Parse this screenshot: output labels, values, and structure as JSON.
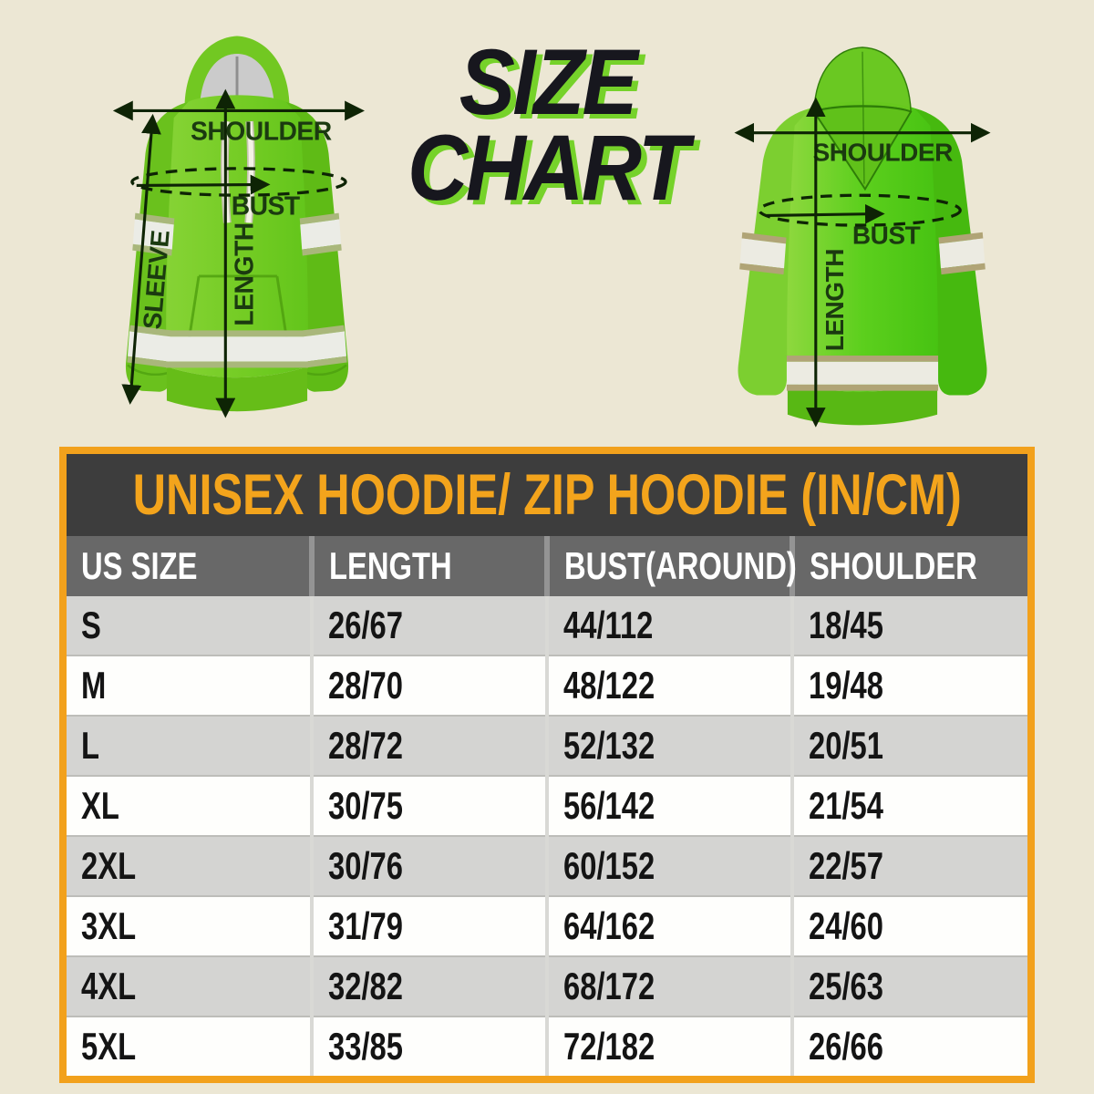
{
  "page": {
    "background": "#ece7d4"
  },
  "header_title": {
    "line1": "SIZE",
    "line2": "CHART",
    "text_color": "#17171e",
    "shadow_color": "#76d22a"
  },
  "front_hoodie": {
    "view": "front",
    "garment_color": "#74cc24",
    "stripe_color": "#ebece6",
    "labels": {
      "shoulder": "SHOULDER",
      "bust": "BUST",
      "sleeve": "SLEEVE",
      "length": "LENGTH"
    }
  },
  "back_hoodie": {
    "view": "back",
    "garment_color": "#5ccf1d",
    "stripe_color": "#ecebe2",
    "labels": {
      "shoulder": "SHOULDER",
      "bust": "BUST",
      "length": "LENGTH"
    }
  },
  "chart_data": {
    "type": "table",
    "title": "UNISEX HOODIE/ ZIP HOODIE (IN/CM)",
    "columns": [
      "US SIZE",
      "LENGTH",
      "BUST(AROUND)",
      "SHOULDER"
    ],
    "rows": [
      [
        "S",
        "26/67",
        "44/112",
        "18/45"
      ],
      [
        "M",
        "28/70",
        "48/122",
        "19/48"
      ],
      [
        "L",
        "28/72",
        "52/132",
        "20/51"
      ],
      [
        "XL",
        "30/75",
        "56/142",
        "21/54"
      ],
      [
        "2XL",
        "30/76",
        "60/152",
        "22/57"
      ],
      [
        "3XL",
        "31/79",
        "64/162",
        "24/60"
      ],
      [
        "4XL",
        "32/82",
        "68/172",
        "25/63"
      ],
      [
        "5XL",
        "33/85",
        "72/182",
        "26/66"
      ]
    ]
  },
  "table_style": {
    "border_color": "#f2a11c",
    "title_bg": "#3d3d3d",
    "title_text_color": "#f3a41c",
    "header_bg": "#686868",
    "header_text_color": "#ffffff",
    "row_alt_bg": "#d4d4d2",
    "row_bg": "#fefefc",
    "cell_text_color": "#141414"
  }
}
